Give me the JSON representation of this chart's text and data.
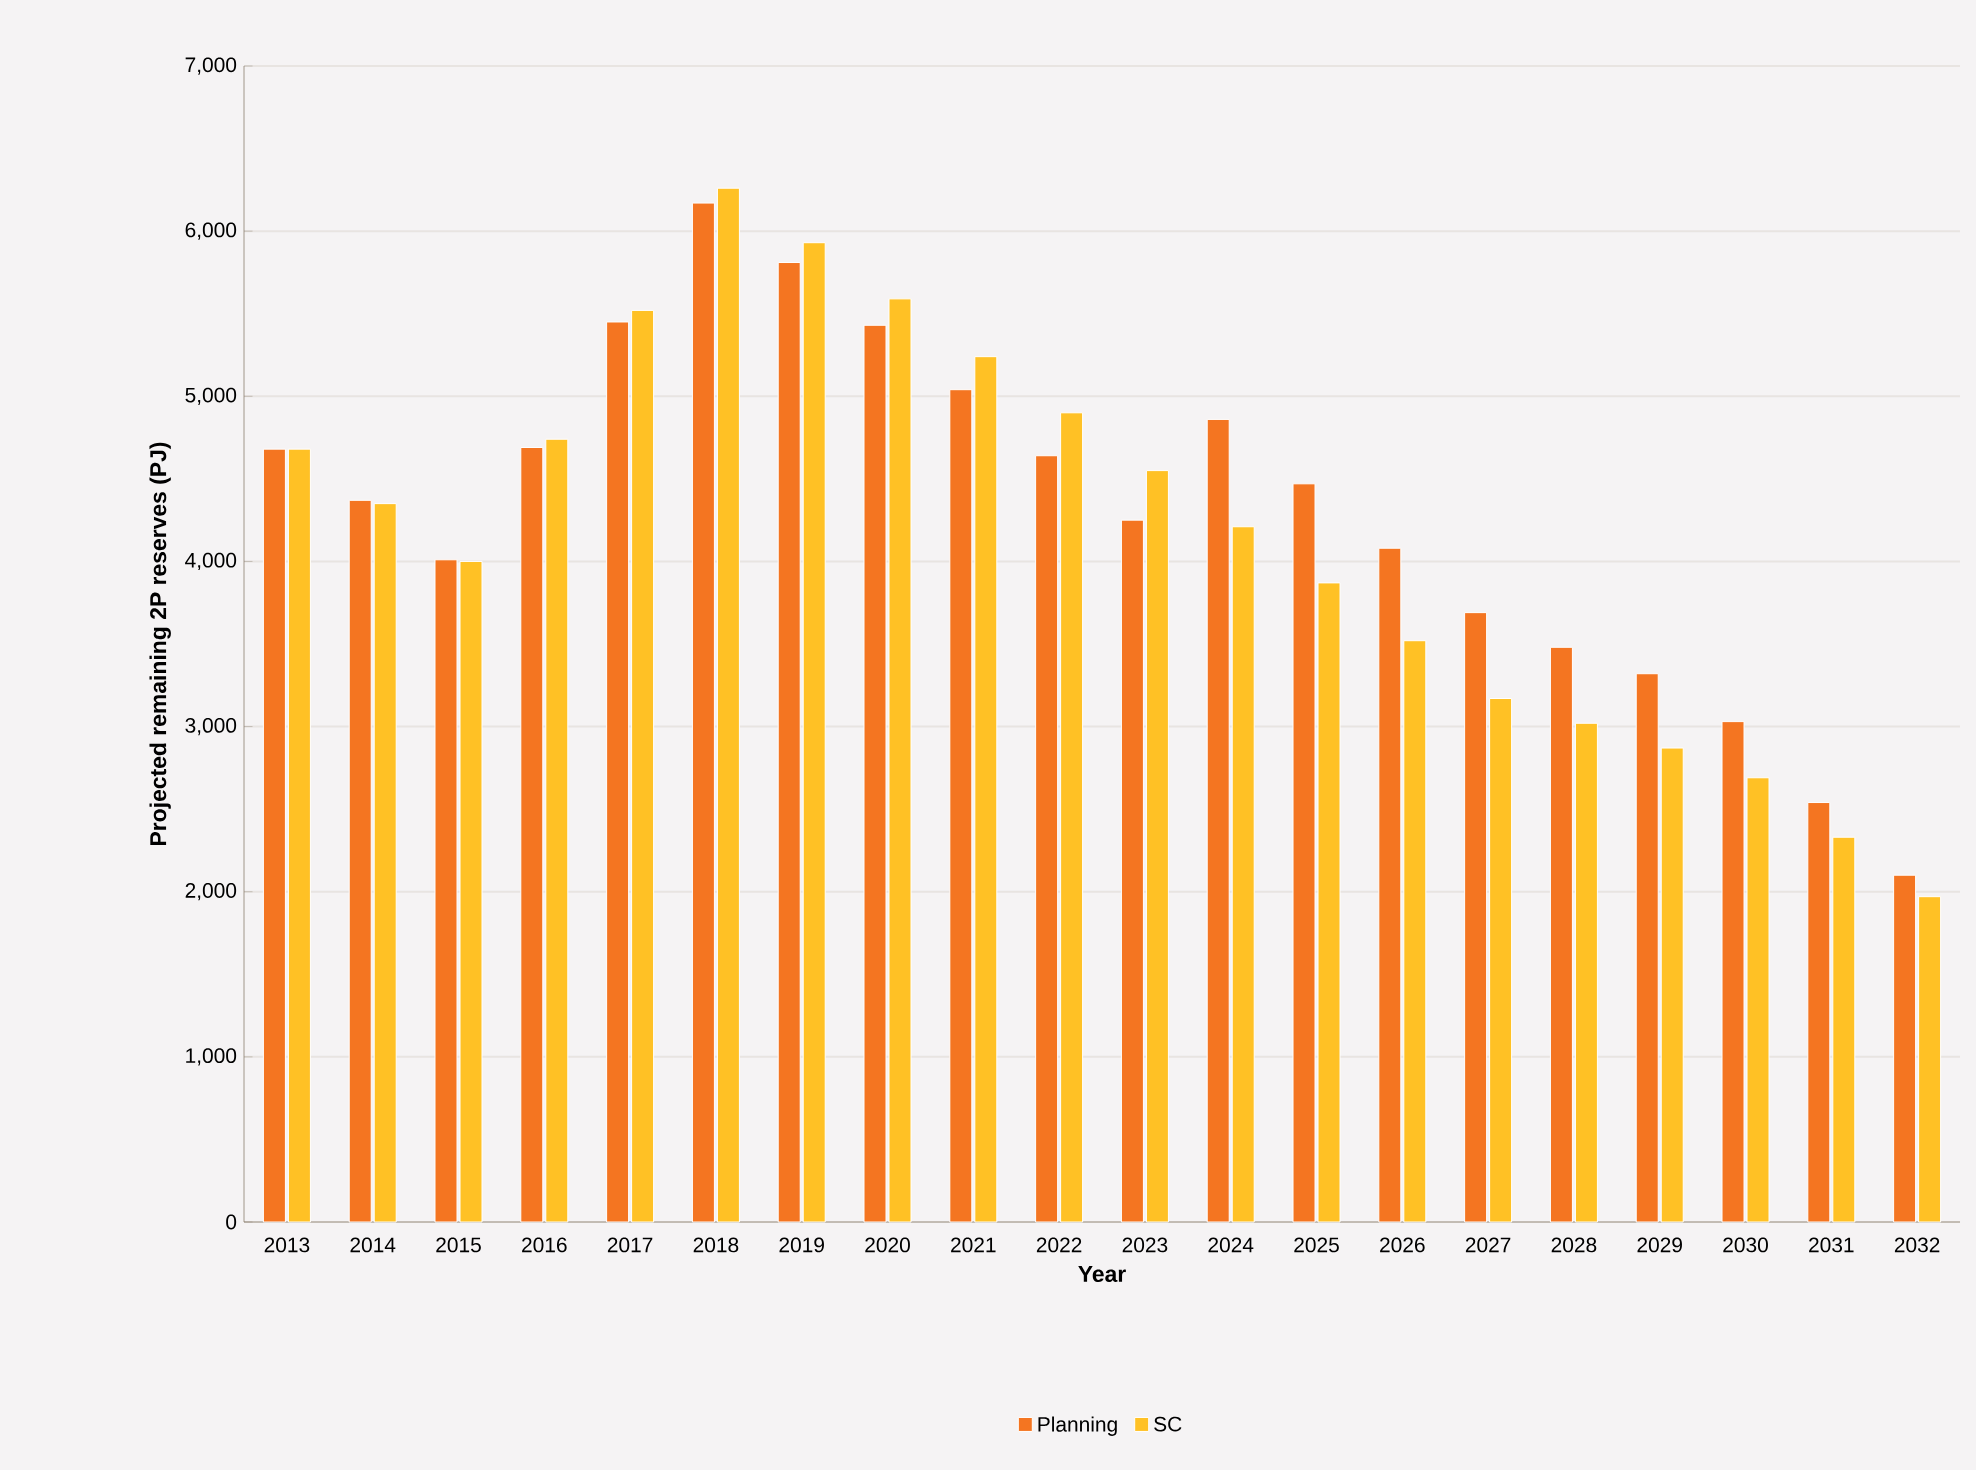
{
  "chart_data": {
    "type": "bar",
    "xlabel": "Year",
    "ylabel": "Projected remaining 2P reserves (PJ)",
    "categories": [
      "2013",
      "2014",
      "2015",
      "2016",
      "2017",
      "2018",
      "2019",
      "2020",
      "2021",
      "2022",
      "2023",
      "2024",
      "2025",
      "2026",
      "2027",
      "2028",
      "2029",
      "2030",
      "2031",
      "2032"
    ],
    "series": [
      {
        "name": "Planning",
        "color": "#f47521",
        "values": [
          4680,
          4370,
          4010,
          4690,
          5450,
          6170,
          5810,
          5430,
          5040,
          4640,
          4250,
          4860,
          4470,
          4080,
          3690,
          3480,
          3320,
          3030,
          2540,
          2100
        ]
      },
      {
        "name": "SC",
        "color": "#ffc125",
        "values": [
          4680,
          4350,
          4000,
          4740,
          5520,
          6260,
          5930,
          5590,
          5240,
          4900,
          4550,
          4210,
          3870,
          3520,
          3170,
          3020,
          2870,
          2690,
          2330,
          1970
        ]
      }
    ],
    "ylim": [
      0,
      7000
    ],
    "yticks": [
      0,
      {
        "value": 1000,
        "label": "1,000"
      },
      {
        "value": 2000,
        "label": "2,000"
      },
      {
        "value": 3000,
        "label": "3,000"
      },
      {
        "value": 4000,
        "label": "4,000"
      },
      {
        "value": 5000,
        "label": "5,000"
      },
      {
        "value": 6000,
        "label": "6,000"
      },
      {
        "value": 7000,
        "label": "7,000"
      }
    ],
    "grid": "y",
    "legend": "bottom"
  }
}
